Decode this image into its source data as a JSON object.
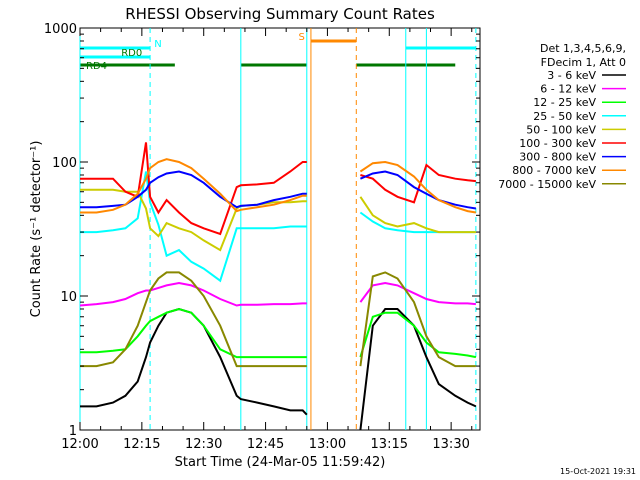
{
  "chart_data": {
    "type": "line",
    "title": "RHESSI Observing Summary Count Rates",
    "xlabel": "Start Time (24-Mar-05 11:59:42)",
    "ylabel": "Count Rate (s⁻¹ detector⁻¹)",
    "ylog": true,
    "ylim": [
      1,
      1000
    ],
    "xlim": [
      "12:00",
      "13:37"
    ],
    "x_ticks": [
      "12:00",
      "12:15",
      "12:30",
      "12:45",
      "13:00",
      "13:15",
      "13:30"
    ],
    "y_ticks": [
      "1",
      "10",
      "100",
      "1000"
    ],
    "x": [
      "12:00",
      "12:04",
      "12:08",
      "12:11",
      "12:14",
      "12:16",
      "12:17",
      "12:19",
      "12:21",
      "12:24",
      "12:27",
      "12:30",
      "12:34",
      "12:38",
      "12:39",
      "12:43",
      "12:47",
      "12:51",
      "12:54",
      "12:55",
      "13:08",
      "13:11",
      "13:14",
      "13:17",
      "13:21",
      "13:24",
      "13:27",
      "13:31",
      "13:34",
      "13:36"
    ],
    "gaps": [
      [
        "12:55",
        "13:08"
      ]
    ],
    "series": [
      {
        "name": "3 - 6 keV",
        "color": "#000000",
        "values": [
          1.5,
          1.5,
          1.6,
          1.8,
          2.3,
          3.5,
          4.5,
          6,
          7.5,
          8,
          7.5,
          6,
          3.5,
          1.8,
          1.7,
          1.6,
          1.5,
          1.4,
          1.4,
          1.3,
          1,
          6,
          8,
          8,
          6,
          3.5,
          2.2,
          1.8,
          1.6,
          1.5
        ]
      },
      {
        "name": "6 - 12 keV",
        "color": "#ff00ff",
        "values": [
          8.5,
          8.7,
          9,
          9.5,
          10.5,
          11,
          11,
          11.5,
          12,
          12.5,
          12,
          11,
          9.5,
          8.5,
          8.6,
          8.6,
          8.7,
          8.7,
          8.8,
          8.8,
          9,
          12,
          12.5,
          12,
          10.5,
          9.5,
          9,
          8.8,
          8.8,
          8.7
        ]
      },
      {
        "name": "12 - 25 keV",
        "color": "#00ff00",
        "values": [
          3.8,
          3.8,
          3.9,
          4,
          5,
          6,
          6.5,
          7,
          7.5,
          8,
          7.5,
          6,
          4,
          3.5,
          3.5,
          3.5,
          3.5,
          3.5,
          3.5,
          3.5,
          3.5,
          7,
          7.5,
          7.5,
          6,
          4.5,
          3.8,
          3.7,
          3.6,
          3.5
        ]
      },
      {
        "name": "25 - 50 keV",
        "color": "#00ffff",
        "values": [
          30,
          30,
          31,
          32,
          38,
          85,
          50,
          34,
          20,
          22,
          18,
          16,
          13,
          32,
          32,
          32,
          32,
          33,
          33,
          33,
          42,
          36,
          32,
          31,
          30,
          30,
          30,
          30,
          30,
          30
        ]
      },
      {
        "name": "50 - 100 keV",
        "color": "#cccc00",
        "values": [
          62,
          62,
          62,
          60,
          60,
          45,
          32,
          28,
          35,
          32,
          30,
          26,
          22,
          45,
          47,
          48,
          50,
          50,
          51,
          51,
          55,
          40,
          35,
          33,
          35,
          32,
          30,
          30,
          30,
          30
        ]
      },
      {
        "name": "100 - 300 keV",
        "color": "#ff0000",
        "values": [
          75,
          75,
          75,
          60,
          55,
          140,
          55,
          42,
          52,
          42,
          35,
          32,
          29,
          65,
          67,
          68,
          70,
          85,
          100,
          100,
          80,
          75,
          62,
          55,
          50,
          95,
          80,
          75,
          73,
          72
        ]
      },
      {
        "name": "300 - 800 keV",
        "color": "#0000ff",
        "values": [
          46,
          46,
          47,
          48,
          55,
          62,
          70,
          77,
          82,
          85,
          80,
          70,
          55,
          46,
          47,
          48,
          52,
          55,
          58,
          58,
          75,
          82,
          85,
          80,
          65,
          58,
          52,
          48,
          46,
          45
        ]
      },
      {
        "name": "800 - 7000 keV",
        "color": "#ff8800",
        "values": [
          42,
          42,
          44,
          48,
          58,
          75,
          90,
          100,
          105,
          100,
          90,
          75,
          58,
          43,
          44,
          46,
          48,
          52,
          56,
          56,
          85,
          98,
          100,
          95,
          78,
          62,
          52,
          46,
          43,
          42
        ]
      },
      {
        "name": "7000 - 15000 keV",
        "color": "#888800",
        "values": [
          3,
          3,
          3.2,
          4,
          6,
          9,
          11,
          13.5,
          15,
          15,
          13,
          10,
          6,
          3,
          3,
          3,
          3,
          3,
          3,
          3,
          3,
          14,
          15,
          13.5,
          9,
          5,
          3.5,
          3,
          3,
          3
        ]
      }
    ],
    "vertical_lines": [
      {
        "x": "12:00",
        "color": "#00ffff",
        "style": "solid"
      },
      {
        "x": "12:17",
        "color": "#00ffff",
        "style": "dashed"
      },
      {
        "x": "12:39",
        "color": "#00ffff",
        "style": "solid"
      },
      {
        "x": "12:55",
        "color": "#00ffff",
        "style": "solid"
      },
      {
        "x": "12:56",
        "color": "#ff8800",
        "style": "solid"
      },
      {
        "x": "13:07",
        "color": "#ff8800",
        "style": "dashed"
      },
      {
        "x": "13:19",
        "color": "#00ffff",
        "style": "solid"
      },
      {
        "x": "13:24",
        "color": "#00ffff",
        "style": "solid"
      },
      {
        "x": "13:36",
        "color": "#00ffff",
        "style": "dashed"
      }
    ],
    "flag_bars": [
      {
        "label": "N",
        "color": "#00ffff",
        "segments": [
          [
            "12:00",
            "12:17"
          ],
          [
            "13:19",
            "13:36"
          ]
        ],
        "label_at": "12:18"
      },
      {
        "label": "S",
        "color": "#ff8800",
        "segments": [
          [
            "12:56",
            "13:07"
          ]
        ],
        "label_at": "12:53"
      },
      {
        "label": "RD0",
        "color": "#00ffff",
        "segments": [
          [
            "12:00",
            "12:17"
          ]
        ],
        "label_at": "12:10"
      },
      {
        "label": "RD4",
        "color": "#007700",
        "segments": [
          [
            "12:00",
            "12:23"
          ],
          [
            "12:39",
            "12:55"
          ],
          [
            "13:07",
            "13:31"
          ]
        ],
        "label_at": "12:00"
      }
    ],
    "legend": {
      "position": "right",
      "header": [
        "Det 1,3,4,5,6,9,",
        "FDecim 1, Att 0"
      ]
    }
  },
  "timestamp": "15-Oct-2021 19:31"
}
